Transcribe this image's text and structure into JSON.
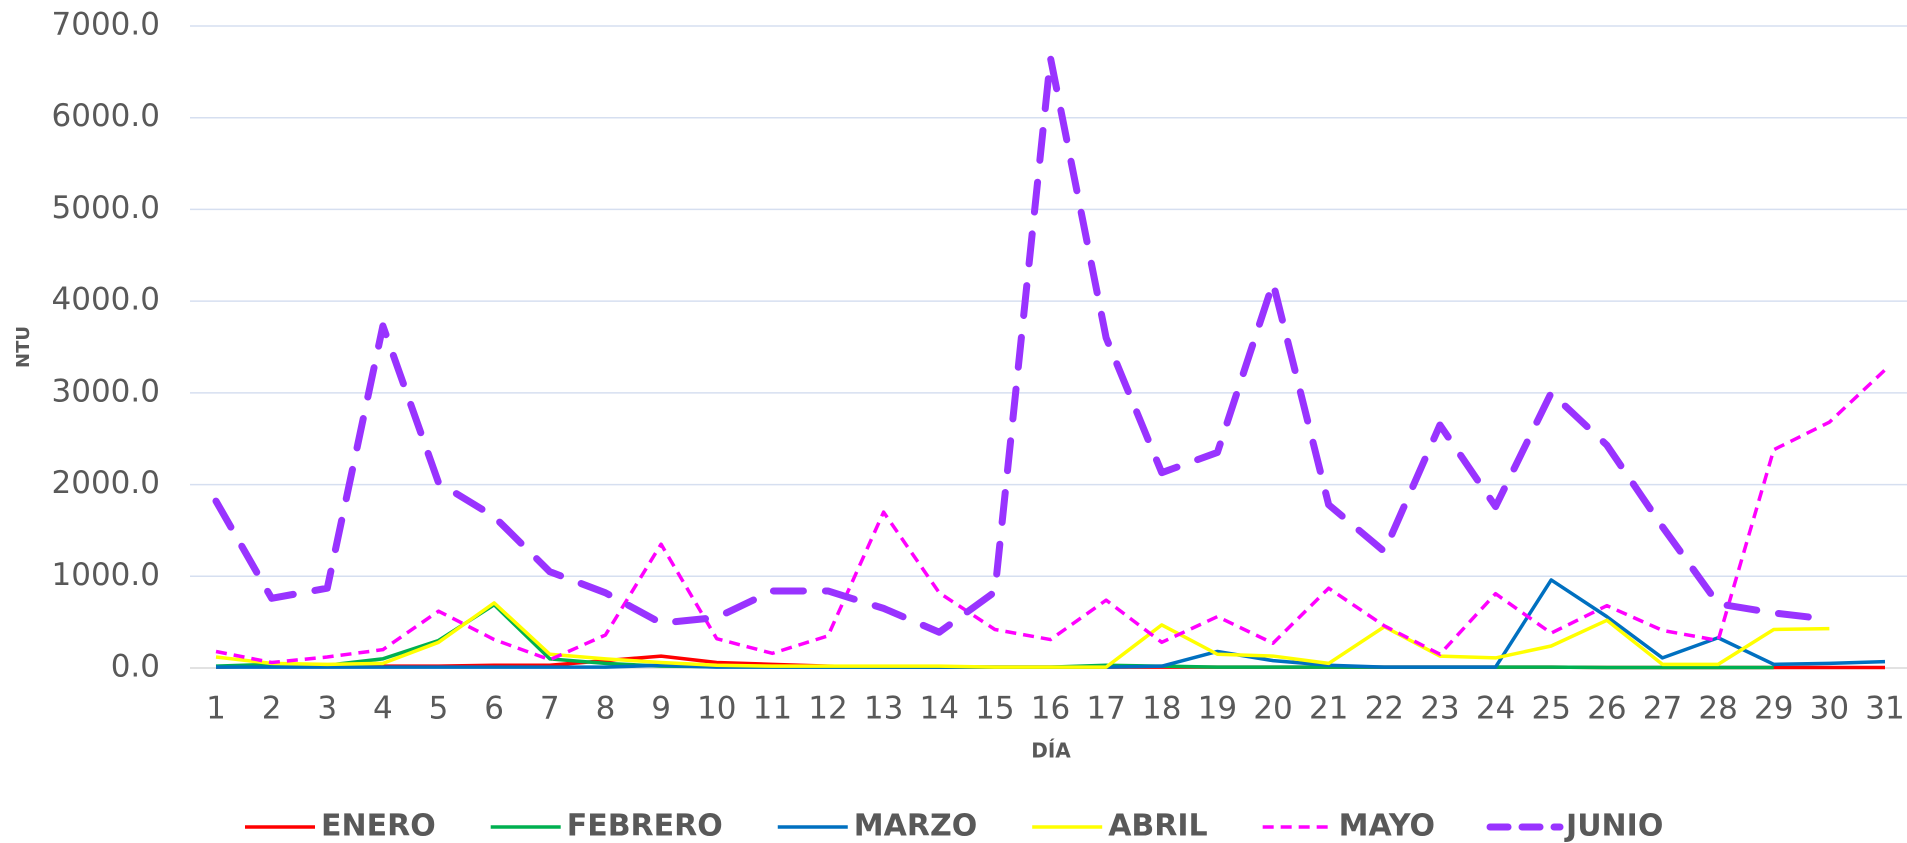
{
  "chart_data": {
    "type": "line",
    "x_label": "DÍA",
    "y_label": "NTU",
    "categories": [
      "1",
      "2",
      "3",
      "4",
      "5",
      "6",
      "7",
      "8",
      "9",
      "10",
      "11",
      "12",
      "13",
      "14",
      "15",
      "16",
      "17",
      "18",
      "19",
      "20",
      "21",
      "22",
      "23",
      "24",
      "25",
      "26",
      "27",
      "28",
      "29",
      "30",
      "31"
    ],
    "ylim": [
      0,
      7000
    ],
    "yticks": [
      {
        "value": 0,
        "label": "0.0"
      },
      {
        "value": 1000,
        "label": "1000.0"
      },
      {
        "value": 2000,
        "label": "2000.0"
      },
      {
        "value": 3000,
        "label": "3000.0"
      },
      {
        "value": 4000,
        "label": "4000.0"
      },
      {
        "value": 5000,
        "label": "5000.0"
      },
      {
        "value": 6000,
        "label": "6000.0"
      },
      {
        "value": 7000,
        "label": "7000.0"
      }
    ],
    "grid": true,
    "legend": "bottom",
    "series": [
      {
        "name": "ENERO",
        "color": "#ff0000",
        "style": "solid",
        "values": [
          10,
          20,
          15,
          20,
          20,
          30,
          30,
          80,
          130,
          60,
          40,
          20,
          10,
          10,
          10,
          10,
          10,
          10,
          10,
          10,
          10,
          10,
          10,
          10,
          10,
          5,
          5,
          5,
          5,
          5,
          5
        ]
      },
      {
        "name": "FEBRERO",
        "color": "#00b050",
        "style": "solid",
        "values": [
          20,
          40,
          30,
          100,
          300,
          690,
          100,
          50,
          20,
          15,
          10,
          10,
          10,
          10,
          10,
          10,
          30,
          20,
          10,
          10,
          10,
          10,
          10,
          10,
          10,
          5,
          5,
          5,
          5,
          null,
          null
        ]
      },
      {
        "name": "MARZO",
        "color": "#0070c0",
        "style": "solid",
        "values": [
          10,
          10,
          10,
          10,
          10,
          10,
          10,
          10,
          30,
          10,
          10,
          10,
          10,
          10,
          10,
          10,
          10,
          20,
          180,
          80,
          30,
          10,
          10,
          10,
          960,
          560,
          110,
          330,
          40,
          50,
          70
        ]
      },
      {
        "name": "ABRIL",
        "color": "#ffff00",
        "style": "solid",
        "values": [
          120,
          50,
          40,
          50,
          280,
          710,
          150,
          100,
          60,
          30,
          20,
          20,
          20,
          20,
          10,
          10,
          10,
          470,
          150,
          130,
          50,
          450,
          130,
          110,
          240,
          520,
          40,
          40,
          420,
          430,
          null
        ]
      },
      {
        "name": "MAYO",
        "color": "#ff00ff",
        "style": "dash",
        "values": [
          180,
          60,
          120,
          200,
          620,
          310,
          90,
          360,
          1350,
          320,
          160,
          350,
          1700,
          820,
          420,
          310,
          740,
          280,
          560,
          270,
          870,
          460,
          150,
          810,
          380,
          680,
          410,
          300,
          2380,
          2680,
          3250
        ]
      },
      {
        "name": "JUNIO",
        "color": "#9933ff",
        "style": "long-dash",
        "values": [
          1820,
          760,
          870,
          3730,
          2020,
          1650,
          1050,
          820,
          490,
          550,
          840,
          840,
          650,
          390,
          830,
          6650,
          3600,
          2130,
          2350,
          4200,
          1780,
          1270,
          2650,
          1760,
          3000,
          2430,
          1540,
          700,
          600,
          530,
          null
        ]
      }
    ]
  }
}
